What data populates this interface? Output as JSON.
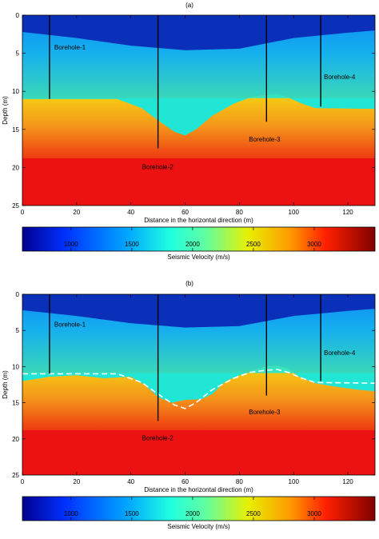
{
  "chart_data": [
    {
      "panel_label": "(a)",
      "type": "heatmap",
      "xlabel": "Distance in the horizontal direction (m)",
      "ylabel": "Depth (m)",
      "xlim": [
        0,
        130
      ],
      "ylim": [
        0,
        25
      ],
      "y_inverted": true,
      "x_ticks": [
        0,
        20,
        40,
        60,
        80,
        100,
        120
      ],
      "y_ticks": [
        0,
        5,
        10,
        15,
        20,
        25
      ],
      "velocity_layers_m_s": {
        "top_layer": 900,
        "upper_layer": 1650,
        "lower_layer": 2400,
        "bedrock": 3100
      },
      "interface_top_depth": [
        [
          0,
          2.2
        ],
        [
          20,
          3.0
        ],
        [
          40,
          4.0
        ],
        [
          60,
          4.6
        ],
        [
          80,
          4.4
        ],
        [
          100,
          3.0
        ],
        [
          120,
          2.3
        ],
        [
          130,
          2.0
        ]
      ],
      "interface_channel": [
        [
          0,
          11.0
        ],
        [
          35,
          11.0
        ],
        [
          44,
          12.2
        ],
        [
          50,
          13.8
        ],
        [
          56,
          15.3
        ],
        [
          60,
          15.8
        ],
        [
          64,
          15.0
        ],
        [
          70,
          13.2
        ],
        [
          78,
          11.6
        ],
        [
          84,
          10.8
        ],
        [
          90,
          10.5
        ],
        [
          94,
          10.4
        ],
        [
          98,
          10.8
        ],
        [
          103,
          11.6
        ],
        [
          108,
          12.2
        ],
        [
          130,
          12.3
        ]
      ],
      "interface_bedrock_depth": [
        [
          0,
          18.8
        ],
        [
          130,
          18.8
        ]
      ],
      "boreholes": [
        {
          "name": "Borehole-1",
          "x": 10,
          "depth": 11
        },
        {
          "name": "Borehole-2",
          "x": 50,
          "depth": 17.5
        },
        {
          "name": "Borehole-3",
          "x": 90,
          "depth": 14
        },
        {
          "name": "Borehole-4",
          "x": 110,
          "depth": 12
        }
      ],
      "colorbar": {
        "label": "Seismic Velocity (m/s)",
        "ticks": [
          1000,
          1500,
          2000,
          2500,
          3000
        ],
        "range": [
          600,
          3500
        ]
      }
    },
    {
      "panel_label": "(b)",
      "type": "heatmap",
      "xlabel": "Distance in the horizontal direction (m)",
      "ylabel": "Depth (m)",
      "xlim": [
        0,
        130
      ],
      "ylim": [
        0,
        25
      ],
      "y_inverted": true,
      "x_ticks": [
        0,
        20,
        40,
        60,
        80,
        100,
        120
      ],
      "y_ticks": [
        0,
        5,
        10,
        15,
        20,
        25
      ],
      "velocity_layers_m_s": {
        "top_layer": 900,
        "upper_layer": 1650,
        "lower_layer": 2400,
        "bedrock": 3100
      },
      "interface_top_depth": [
        [
          0,
          2.2
        ],
        [
          20,
          3.0
        ],
        [
          40,
          4.0
        ],
        [
          60,
          4.6
        ],
        [
          80,
          4.4
        ],
        [
          100,
          3.0
        ],
        [
          120,
          2.3
        ],
        [
          130,
          2.0
        ]
      ],
      "interface_channel": [
        [
          0,
          12.0
        ],
        [
          10,
          11.4
        ],
        [
          20,
          11.2
        ],
        [
          30,
          11.6
        ],
        [
          40,
          11.4
        ],
        [
          45,
          12.5
        ],
        [
          50,
          14.2
        ],
        [
          55,
          15.0
        ],
        [
          60,
          14.6
        ],
        [
          66,
          14.5
        ],
        [
          70,
          13.8
        ],
        [
          75,
          12.0
        ],
        [
          80,
          11.2
        ],
        [
          86,
          10.4
        ],
        [
          90,
          10.0
        ],
        [
          94,
          9.9
        ],
        [
          98,
          10.3
        ],
        [
          102,
          11.4
        ],
        [
          108,
          12.3
        ],
        [
          116,
          12.8
        ],
        [
          124,
          13.2
        ],
        [
          130,
          13.4
        ]
      ],
      "true_boundary": [
        [
          0,
          11.0
        ],
        [
          35,
          11.0
        ],
        [
          44,
          12.2
        ],
        [
          50,
          13.8
        ],
        [
          56,
          15.3
        ],
        [
          60,
          15.8
        ],
        [
          64,
          15.0
        ],
        [
          70,
          13.2
        ],
        [
          78,
          11.6
        ],
        [
          84,
          10.8
        ],
        [
          90,
          10.5
        ],
        [
          94,
          10.4
        ],
        [
          98,
          10.8
        ],
        [
          103,
          11.6
        ],
        [
          108,
          12.2
        ],
        [
          130,
          12.3
        ]
      ],
      "interface_bedrock_depth": [
        [
          0,
          18.8
        ],
        [
          130,
          18.8
        ]
      ],
      "boreholes": [
        {
          "name": "Borehole-1",
          "x": 10,
          "depth": 11
        },
        {
          "name": "Borehole-2",
          "x": 50,
          "depth": 17.5
        },
        {
          "name": "Borehole-3",
          "x": 90,
          "depth": 14
        },
        {
          "name": "Borehole-4",
          "x": 110,
          "depth": 12
        }
      ],
      "colorbar": {
        "label": "Seismic Velocity (m/s)",
        "ticks": [
          1000,
          1500,
          2000,
          2500,
          3000
        ],
        "range": [
          600,
          3500
        ]
      }
    }
  ],
  "colors": {
    "top_layer": "#0a2fb8",
    "upper_top": "#0d8cf5",
    "upper_bottom": "#3ad8b8",
    "channel_fill": "#1fe8d8",
    "lower_top": "#f6d012",
    "lower_bottom": "#ef3a12",
    "bedrock": "#ed1212",
    "borehole_line": "#000000",
    "true_boundary": "#ffffff"
  }
}
